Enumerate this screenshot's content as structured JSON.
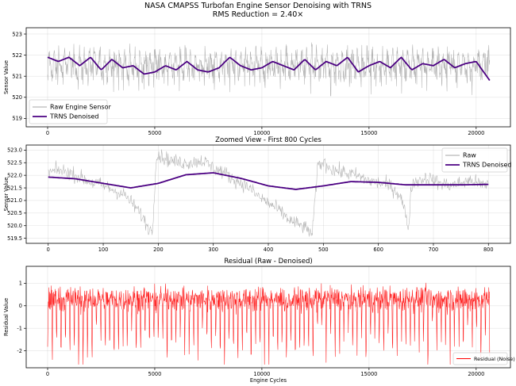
{
  "suptitle": {
    "line1": "NASA CMAPSS Turbofan Engine Sensor Denoising with TRNS",
    "line2": "RMS Reduction = 2.40×"
  },
  "chart_data": [
    {
      "type": "line",
      "title": "",
      "xlabel": "",
      "ylabel": "Sensor Value",
      "xlim": [
        -1000,
        21600
      ],
      "ylim": [
        518.6,
        523.3
      ],
      "xticks": [
        0,
        5000,
        10000,
        15000,
        20000
      ],
      "yticks": [
        519,
        520,
        521,
        522,
        523
      ],
      "grid": true,
      "legend": "lower-left",
      "x_end": 20631,
      "series": [
        {
          "name": "Raw Engine Sensor",
          "color": "#a6a6a6",
          "sampling": "dense noisy signal, approx. 519.3-523.2 range"
        },
        {
          "name": "TRNS Denoised",
          "color": "#4b0082",
          "x": [
            0,
            500,
            1000,
            1500,
            2000,
            2500,
            3000,
            3500,
            4000,
            4500,
            5000,
            5500,
            6000,
            6500,
            7000,
            7500,
            8000,
            8500,
            9000,
            9500,
            10000,
            10500,
            11000,
            11500,
            12000,
            12500,
            13000,
            13500,
            14000,
            14500,
            15000,
            15500,
            16000,
            16500,
            17000,
            17500,
            18000,
            18500,
            19000,
            19500,
            20000,
            20631
          ],
          "values": [
            521.9,
            521.7,
            521.9,
            521.5,
            521.9,
            521.3,
            521.8,
            521.4,
            521.5,
            521.1,
            521.2,
            521.5,
            521.3,
            521.7,
            521.3,
            521.2,
            521.4,
            521.9,
            521.5,
            521.3,
            521.4,
            521.7,
            521.5,
            521.3,
            521.8,
            521.3,
            521.7,
            521.5,
            521.9,
            521.2,
            521.5,
            521.7,
            521.4,
            521.9,
            521.3,
            521.6,
            521.5,
            521.8,
            521.4,
            521.6,
            521.7,
            520.8
          ]
        }
      ]
    },
    {
      "type": "line",
      "title": "Zoomed View - First 800 Cycles",
      "xlabel": "",
      "ylabel": "Sensor Value",
      "xlim": [
        -40,
        840
      ],
      "ylim": [
        519.3,
        523.2
      ],
      "xticks": [
        0,
        100,
        200,
        300,
        400,
        500,
        600,
        700,
        800
      ],
      "yticks": [
        519.5,
        520.0,
        520.5,
        521.0,
        521.5,
        522.0,
        522.5,
        523.0
      ],
      "grid": true,
      "legend": "upper-right",
      "series": [
        {
          "name": "Raw",
          "color": "#a6a6a6",
          "x": [
            0,
            20,
            40,
            60,
            80,
            100,
            120,
            140,
            160,
            170,
            180,
            186,
            190,
            196,
            200,
            220,
            240,
            260,
            280,
            300,
            320,
            340,
            360,
            380,
            400,
            420,
            440,
            460,
            475,
            480,
            484,
            490,
            500,
            520,
            540,
            560,
            580,
            600,
            620,
            640,
            650,
            655,
            660,
            670,
            690,
            710,
            730,
            750,
            770,
            790,
            800
          ],
          "values": [
            522.1,
            522.2,
            522.1,
            521.9,
            521.7,
            521.6,
            521.4,
            521.2,
            520.7,
            520.4,
            520.0,
            519.8,
            519.9,
            522.7,
            522.8,
            522.6,
            522.5,
            522.5,
            522.6,
            522.3,
            522.1,
            521.8,
            521.6,
            521.2,
            520.9,
            520.6,
            520.2,
            520.0,
            519.8,
            519.6,
            520.8,
            522.4,
            522.5,
            522.2,
            522.1,
            522.0,
            521.8,
            521.7,
            521.6,
            521.2,
            520.4,
            519.9,
            521.6,
            521.8,
            521.9,
            521.7,
            521.6,
            521.7,
            521.8,
            521.6,
            521.7
          ]
        },
        {
          "name": "TRNS Denoised",
          "color": "#4b0082",
          "x": [
            0,
            50,
            100,
            150,
            200,
            250,
            300,
            350,
            400,
            450,
            500,
            550,
            600,
            650,
            700,
            750,
            800
          ],
          "values": [
            521.93,
            521.86,
            521.68,
            521.5,
            521.68,
            522.02,
            522.1,
            521.88,
            521.58,
            521.44,
            521.58,
            521.75,
            521.72,
            521.62,
            521.62,
            521.62,
            521.64
          ]
        }
      ]
    },
    {
      "type": "line",
      "title": "Residual (Raw - Denoised)",
      "xlabel": "Engine Cycles",
      "ylabel": "Residual Value",
      "xlim": [
        -1000,
        21600
      ],
      "ylim": [
        -2.75,
        1.75
      ],
      "xticks": [
        0,
        5000,
        10000,
        15000,
        20000
      ],
      "yticks": [
        -2,
        -1,
        0,
        1
      ],
      "grid": true,
      "legend": "lower-right",
      "x_end": 20631,
      "series": [
        {
          "name": "Residual (Noise)",
          "color": "#ff0000",
          "sampling": "dense noisy signal, approx. -2.6 to 1.7 range"
        }
      ]
    }
  ]
}
